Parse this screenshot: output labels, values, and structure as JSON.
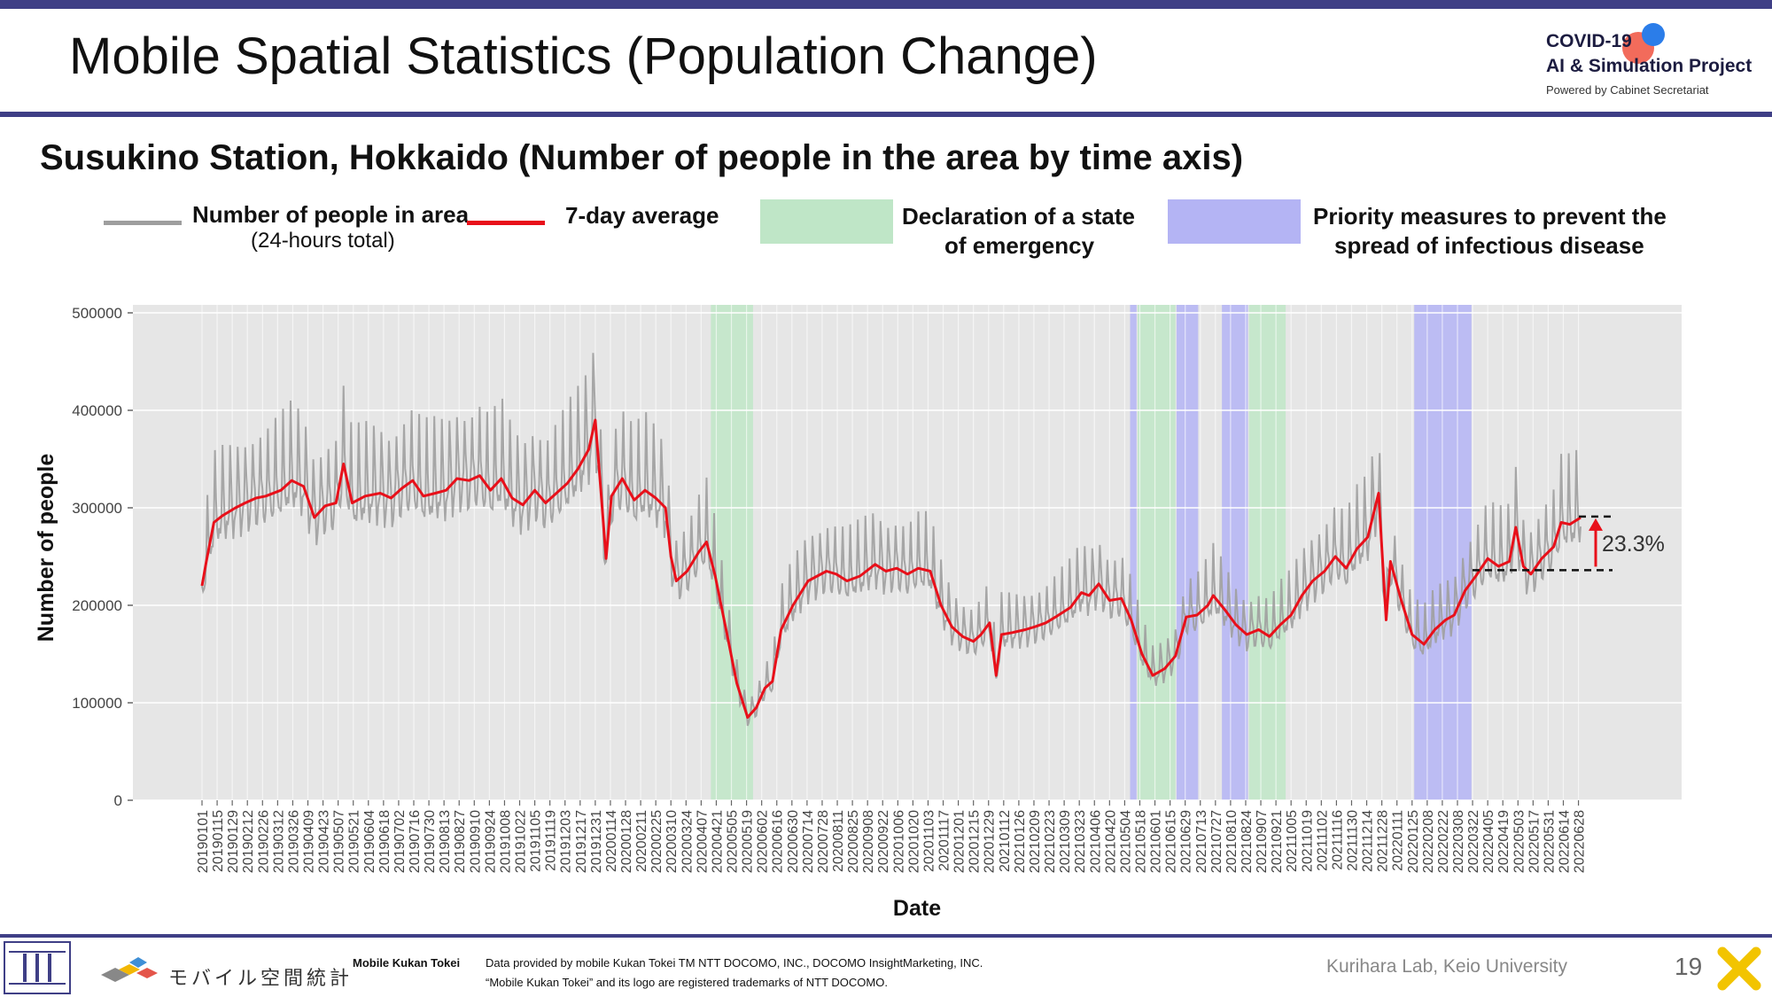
{
  "header": {
    "title": "Mobile Spatial Statistics (Population Change)",
    "logo_line1": "COVID-19",
    "logo_line2": "AI & Simulation Project",
    "logo_line3": "Powered by Cabinet Secretariat"
  },
  "legend": {
    "people_label": "Number of people in area",
    "people_sub": "(24-hours total)",
    "avg_label": "7-day average",
    "emergency_label_1": "Declaration of a state",
    "emergency_label_2": "of emergency",
    "priority_label_1": "Priority measures to prevent the",
    "priority_label_2": "spread of infectious disease"
  },
  "colors": {
    "raw": "#9e9e9e",
    "avg": "#e8101a",
    "emergency": "#bfe6c7",
    "priority": "#b4b4f4",
    "plot_bg": "#e6e6e6",
    "brand": "#3f3f86"
  },
  "chart_data": {
    "type": "line",
    "title": "Susukino Station, Hokkaido (Number of people in the area by time axis)",
    "xlabel": "Date",
    "ylabel": "Number of people",
    "ylim": [
      0,
      500000
    ],
    "yticks": [
      0,
      100000,
      200000,
      300000,
      400000,
      500000
    ],
    "x_start": "2019-01-01",
    "x_end": "2022-06-30",
    "xticks": [
      "20190101",
      "20190115",
      "20190129",
      "20190212",
      "20190226",
      "20190312",
      "20190326",
      "20190409",
      "20190423",
      "20190507",
      "20190521",
      "20190604",
      "20190618",
      "20190702",
      "20190716",
      "20190730",
      "20190813",
      "20190827",
      "20190910",
      "20190924",
      "20191008",
      "20191022",
      "20191105",
      "20191119",
      "20191203",
      "20191217",
      "20191231",
      "20200114",
      "20200128",
      "20200211",
      "20200225",
      "20200310",
      "20200324",
      "20200407",
      "20200421",
      "20200505",
      "20200519",
      "20200602",
      "20200616",
      "20200630",
      "20200714",
      "20200728",
      "20200811",
      "20200825",
      "20200908",
      "20200922",
      "20201006",
      "20201020",
      "20201103",
      "20201117",
      "20201201",
      "20201215",
      "20201229",
      "20210112",
      "20210126",
      "20210209",
      "20210223",
      "20210309",
      "20210323",
      "20210406",
      "20210420",
      "20210504",
      "20210518",
      "20210601",
      "20210615",
      "20210629",
      "20210713",
      "20210727",
      "20210810",
      "20210824",
      "20210907",
      "20210921",
      "20211005",
      "20211019",
      "20211102",
      "20211116",
      "20211130",
      "20211214",
      "20211228",
      "20220111",
      "20220125",
      "20220208",
      "20220222",
      "20220308",
      "20220322",
      "20220405",
      "20220419",
      "20220503",
      "20220517",
      "20220531",
      "20220614",
      "20220628"
    ],
    "grid": true,
    "series": [
      {
        "name": "7-day average",
        "points": [
          [
            "2019-01-01",
            220000
          ],
          [
            "2019-01-05",
            245000
          ],
          [
            "2019-01-12",
            285000
          ],
          [
            "2019-01-20",
            292000
          ],
          [
            "2019-02-01",
            300000
          ],
          [
            "2019-02-10",
            305000
          ],
          [
            "2019-02-20",
            310000
          ],
          [
            "2019-03-01",
            312000
          ],
          [
            "2019-03-15",
            318000
          ],
          [
            "2019-03-25",
            328000
          ],
          [
            "2019-04-05",
            322000
          ],
          [
            "2019-04-15",
            290000
          ],
          [
            "2019-04-25",
            302000
          ],
          [
            "2019-05-05",
            305000
          ],
          [
            "2019-05-12",
            345000
          ],
          [
            "2019-05-20",
            305000
          ],
          [
            "2019-06-01",
            312000
          ],
          [
            "2019-06-15",
            315000
          ],
          [
            "2019-06-25",
            310000
          ],
          [
            "2019-07-05",
            320000
          ],
          [
            "2019-07-15",
            328000
          ],
          [
            "2019-07-25",
            312000
          ],
          [
            "2019-08-05",
            315000
          ],
          [
            "2019-08-15",
            318000
          ],
          [
            "2019-08-25",
            330000
          ],
          [
            "2019-09-05",
            328000
          ],
          [
            "2019-09-15",
            333000
          ],
          [
            "2019-09-25",
            318000
          ],
          [
            "2019-10-05",
            330000
          ],
          [
            "2019-10-15",
            310000
          ],
          [
            "2019-10-25",
            303000
          ],
          [
            "2019-11-05",
            318000
          ],
          [
            "2019-11-15",
            305000
          ],
          [
            "2019-11-25",
            315000
          ],
          [
            "2019-12-05",
            325000
          ],
          [
            "2019-12-15",
            340000
          ],
          [
            "2019-12-25",
            360000
          ],
          [
            "2019-12-31",
            390000
          ],
          [
            "2020-01-05",
            320000
          ],
          [
            "2020-01-10",
            248000
          ],
          [
            "2020-01-15",
            312000
          ],
          [
            "2020-01-25",
            330000
          ],
          [
            "2020-02-05",
            308000
          ],
          [
            "2020-02-15",
            318000
          ],
          [
            "2020-02-25",
            310000
          ],
          [
            "2020-03-05",
            300000
          ],
          [
            "2020-03-10",
            250000
          ],
          [
            "2020-03-15",
            225000
          ],
          [
            "2020-03-25",
            235000
          ],
          [
            "2020-04-05",
            255000
          ],
          [
            "2020-04-12",
            265000
          ],
          [
            "2020-04-20",
            230000
          ],
          [
            "2020-05-01",
            170000
          ],
          [
            "2020-05-10",
            120000
          ],
          [
            "2020-05-20",
            85000
          ],
          [
            "2020-05-28",
            95000
          ],
          [
            "2020-06-05",
            115000
          ],
          [
            "2020-06-12",
            122000
          ],
          [
            "2020-06-20",
            175000
          ],
          [
            "2020-07-01",
            200000
          ],
          [
            "2020-07-15",
            225000
          ],
          [
            "2020-08-01",
            235000
          ],
          [
            "2020-08-10",
            232000
          ],
          [
            "2020-08-20",
            225000
          ],
          [
            "2020-09-01",
            230000
          ],
          [
            "2020-09-15",
            242000
          ],
          [
            "2020-09-25",
            235000
          ],
          [
            "2020-10-05",
            238000
          ],
          [
            "2020-10-15",
            232000
          ],
          [
            "2020-10-25",
            238000
          ],
          [
            "2020-11-05",
            235000
          ],
          [
            "2020-11-15",
            200000
          ],
          [
            "2020-11-25",
            178000
          ],
          [
            "2020-12-05",
            168000
          ],
          [
            "2020-12-15",
            163000
          ],
          [
            "2020-12-22",
            170000
          ],
          [
            "2020-12-30",
            182000
          ],
          [
            "2021-01-05",
            128000
          ],
          [
            "2021-01-10",
            170000
          ],
          [
            "2021-01-20",
            172000
          ],
          [
            "2021-02-01",
            175000
          ],
          [
            "2021-02-10",
            178000
          ],
          [
            "2021-02-20",
            182000
          ],
          [
            "2021-03-01",
            188000
          ],
          [
            "2021-03-15",
            198000
          ],
          [
            "2021-03-25",
            213000
          ],
          [
            "2021-04-01",
            210000
          ],
          [
            "2021-04-10",
            222000
          ],
          [
            "2021-04-20",
            205000
          ],
          [
            "2021-05-01",
            207000
          ],
          [
            "2021-05-10",
            185000
          ],
          [
            "2021-05-20",
            150000
          ],
          [
            "2021-05-30",
            128000
          ],
          [
            "2021-06-10",
            135000
          ],
          [
            "2021-06-20",
            148000
          ],
          [
            "2021-06-30",
            188000
          ],
          [
            "2021-07-10",
            190000
          ],
          [
            "2021-07-20",
            200000
          ],
          [
            "2021-07-25",
            210000
          ],
          [
            "2021-08-05",
            195000
          ],
          [
            "2021-08-15",
            180000
          ],
          [
            "2021-08-25",
            170000
          ],
          [
            "2021-09-05",
            175000
          ],
          [
            "2021-09-15",
            168000
          ],
          [
            "2021-09-25",
            180000
          ],
          [
            "2021-10-05",
            190000
          ],
          [
            "2021-10-15",
            210000
          ],
          [
            "2021-10-25",
            225000
          ],
          [
            "2021-11-05",
            235000
          ],
          [
            "2021-11-15",
            250000
          ],
          [
            "2021-11-25",
            238000
          ],
          [
            "2021-12-05",
            258000
          ],
          [
            "2021-12-15",
            270000
          ],
          [
            "2021-12-25",
            315000
          ],
          [
            "2022-01-01",
            185000
          ],
          [
            "2022-01-05",
            245000
          ],
          [
            "2022-01-15",
            205000
          ],
          [
            "2022-01-25",
            170000
          ],
          [
            "2022-02-05",
            160000
          ],
          [
            "2022-02-15",
            175000
          ],
          [
            "2022-02-25",
            185000
          ],
          [
            "2022-03-05",
            190000
          ],
          [
            "2022-03-15",
            215000
          ],
          [
            "2022-03-25",
            230000
          ],
          [
            "2022-04-05",
            248000
          ],
          [
            "2022-04-15",
            240000
          ],
          [
            "2022-04-25",
            245000
          ],
          [
            "2022-05-01",
            280000
          ],
          [
            "2022-05-08",
            240000
          ],
          [
            "2022-05-15",
            232000
          ],
          [
            "2022-05-25",
            248000
          ],
          [
            "2022-06-05",
            260000
          ],
          [
            "2022-06-12",
            285000
          ],
          [
            "2022-06-20",
            283000
          ],
          [
            "2022-06-30",
            290000
          ]
        ]
      }
    ],
    "shaded_periods": [
      {
        "type": "emergency",
        "start": "2020-04-16",
        "end": "2020-05-25"
      },
      {
        "type": "priority",
        "start": "2021-05-09",
        "end": "2021-05-15"
      },
      {
        "type": "emergency",
        "start": "2021-05-16",
        "end": "2021-06-20"
      },
      {
        "type": "priority",
        "start": "2021-06-21",
        "end": "2021-07-11"
      },
      {
        "type": "priority",
        "start": "2021-08-02",
        "end": "2021-08-26"
      },
      {
        "type": "emergency",
        "start": "2021-08-27",
        "end": "2021-09-30"
      },
      {
        "type": "priority",
        "start": "2022-01-27",
        "end": "2022-03-21"
      }
    ],
    "annotation": {
      "text": "23.3%",
      "from_value": 236000,
      "to_value": 291000
    }
  },
  "footer": {
    "brand_text": "モバイル空間統計",
    "brand_label": "Mobile Kukan Tokei",
    "credit_line1": "Data provided by mobile Kukan Tokei TM NTT DOCOMO, INC., DOCOMO InsightMarketing, INC.",
    "credit_line2": "“Mobile Kukan Tokei” and its logo are registered trademarks of NTT DOCOMO.",
    "lab": "Kurihara Lab, Keio University",
    "page": "19"
  }
}
